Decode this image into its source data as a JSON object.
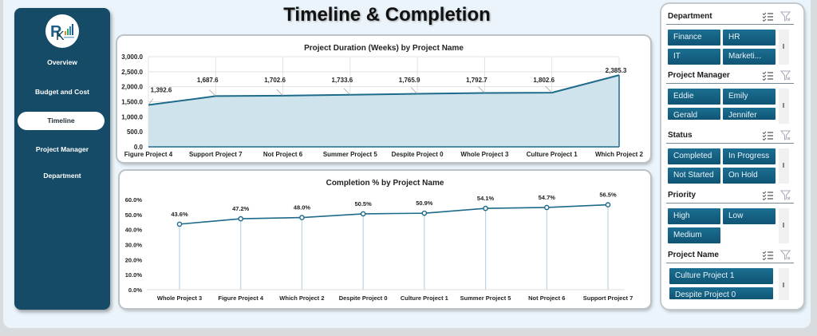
{
  "page": {
    "title": "Timeline & Completion"
  },
  "sidebar": {
    "logo": "RK logo",
    "items": [
      {
        "label": "Overview",
        "active": false
      },
      {
        "label": "Budget and Cost",
        "active": false
      },
      {
        "label": "Timeline",
        "active": true
      },
      {
        "label": "Project Manager",
        "active": false
      },
      {
        "label": "Department",
        "active": false
      }
    ]
  },
  "colors": {
    "sidebar": "#154b66",
    "line": "#1d6a8a",
    "area": "#cfe3ec",
    "slicer_button": "#135f80"
  },
  "chart_data": [
    {
      "type": "area",
      "title": "Project Duration (Weeks) by Project Name",
      "categories": [
        "Figure Project 4",
        "Support Project 7",
        "Not Project 6",
        "Summer Project 5",
        "Despite Project 0",
        "Whole Project 3",
        "Culture Project 1",
        "Which Project 2"
      ],
      "values": [
        1392.6,
        1687.6,
        1702.6,
        1733.6,
        1765.9,
        1792.7,
        1802.6,
        2385.3
      ],
      "labels": [
        "1,392.6",
        "1,687.6",
        "1,702.6",
        "1,733.6",
        "1,765.9",
        "1,792.7",
        "1,802.6",
        "2,385.3"
      ],
      "yticks": [
        "0.0",
        "500.0",
        "1,000.0",
        "1,500.0",
        "2,000.0",
        "2,500.0",
        "3,000.0"
      ],
      "ylim": [
        0,
        3000
      ],
      "xlabel": "",
      "ylabel": "",
      "grid": true,
      "legend": "none"
    },
    {
      "type": "line",
      "title": "Completion % by Project Name",
      "categories": [
        "Whole Project 3",
        "Figure Project 4",
        "Which Project 2",
        "Despite Project 0",
        "Culture Project 1",
        "Summer Project 5",
        "Not Project 6",
        "Support Project 7"
      ],
      "values": [
        43.6,
        47.2,
        48.0,
        50.5,
        50.9,
        54.1,
        54.7,
        56.5
      ],
      "labels": [
        "43.6%",
        "47.2%",
        "48.0%",
        "50.5%",
        "50.9%",
        "54.1%",
        "54.7%",
        "56.5%"
      ],
      "yticks": [
        "0.0%",
        "10.0%",
        "20.0%",
        "30.0%",
        "40.0%",
        "50.0%",
        "60.0%"
      ],
      "ylim": [
        0,
        60
      ],
      "xlabel": "",
      "ylabel": "",
      "grid": false,
      "legend": "none",
      "drop_lines": true
    }
  ],
  "slicers": [
    {
      "title": "Department",
      "items": [
        "Finance",
        "HR",
        "IT",
        "Marketi..."
      ]
    },
    {
      "title": "Project Manager",
      "items": [
        "Eddie",
        "Emily",
        "Gerald",
        "Jennifer"
      ]
    },
    {
      "title": "Status",
      "items": [
        "Completed",
        "In Progress",
        "Not Started",
        "On Hold"
      ]
    },
    {
      "title": "Priority",
      "items": [
        "High",
        "Low",
        "Medium"
      ]
    },
    {
      "title": "Project Name",
      "items": [
        "Culture Project 1",
        "Despite Project 0"
      ]
    }
  ]
}
